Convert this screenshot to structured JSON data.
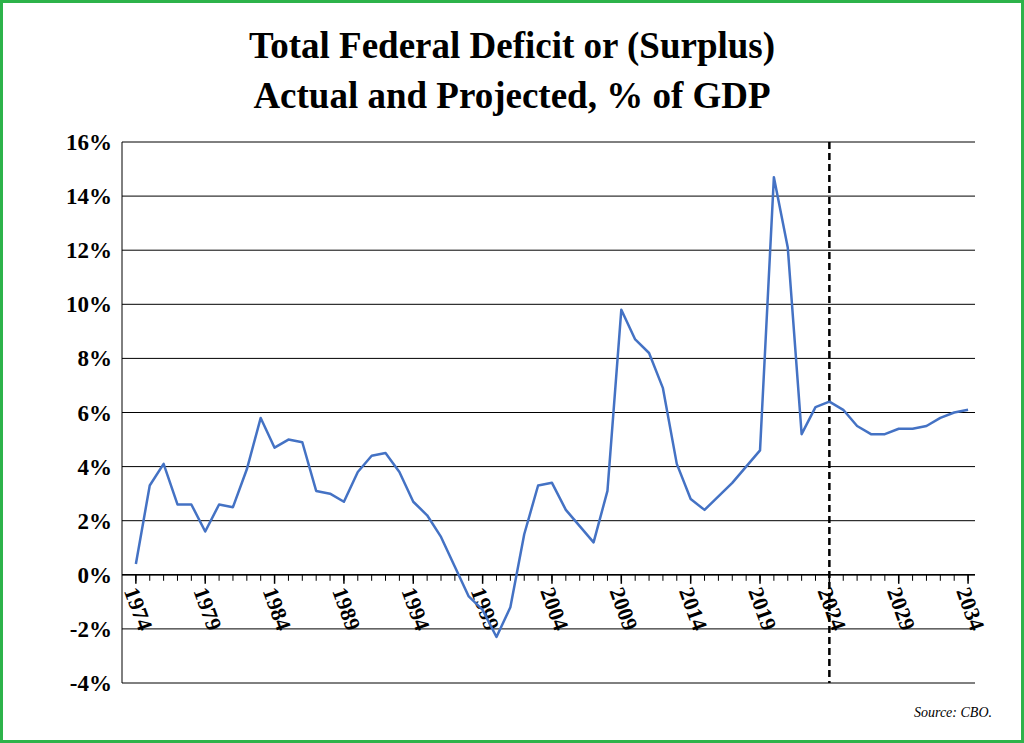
{
  "chart_data": {
    "type": "line",
    "title": "Total Federal Deficit or (Surplus)",
    "subtitle": "Actual and Projected, % of GDP",
    "source": "Source: CBO.",
    "x": [
      1974,
      1975,
      1976,
      1977,
      1978,
      1979,
      1980,
      1981,
      1982,
      1983,
      1984,
      1985,
      1986,
      1987,
      1988,
      1989,
      1990,
      1991,
      1992,
      1993,
      1994,
      1995,
      1996,
      1997,
      1998,
      1999,
      2000,
      2001,
      2002,
      2003,
      2004,
      2005,
      2006,
      2007,
      2008,
      2009,
      2010,
      2011,
      2012,
      2013,
      2014,
      2015,
      2016,
      2017,
      2018,
      2019,
      2020,
      2021,
      2022,
      2023,
      2024,
      2025,
      2026,
      2027,
      2028,
      2029,
      2030,
      2031,
      2032,
      2033,
      2034
    ],
    "values": [
      0.4,
      3.3,
      4.1,
      2.6,
      2.6,
      1.6,
      2.6,
      2.5,
      3.9,
      5.8,
      4.7,
      5.0,
      4.9,
      3.1,
      3.0,
      2.7,
      3.8,
      4.4,
      4.5,
      3.8,
      2.7,
      2.2,
      1.4,
      0.3,
      -0.8,
      -1.3,
      -2.3,
      -1.2,
      1.5,
      3.3,
      3.4,
      2.4,
      1.8,
      1.2,
      3.1,
      9.8,
      8.7,
      8.2,
      6.9,
      4.1,
      2.8,
      2.4,
      2.9,
      3.4,
      4.0,
      4.6,
      14.7,
      12.1,
      5.2,
      6.2,
      6.4,
      6.1,
      5.5,
      5.2,
      5.2,
      5.4,
      5.4,
      5.5,
      5.8,
      6.0,
      6.1
    ],
    "color": "#4472c4",
    "xlim": [
      1973,
      2034.5
    ],
    "xticks": [
      1974,
      1979,
      1984,
      1989,
      1994,
      1999,
      2004,
      2009,
      2014,
      2019,
      2024,
      2029,
      2034
    ],
    "ylim": [
      -4,
      16
    ],
    "yticks": [
      {
        "value": -4,
        "label": "-4%"
      },
      {
        "value": -2,
        "label": "-2%"
      },
      {
        "value": 0,
        "label": "0%"
      },
      {
        "value": 2,
        "label": "2%"
      },
      {
        "value": 4,
        "label": "4%"
      },
      {
        "value": 6,
        "label": "6%"
      },
      {
        "value": 8,
        "label": "8%"
      },
      {
        "value": 10,
        "label": "10%"
      },
      {
        "value": 12,
        "label": "12%"
      },
      {
        "value": 14,
        "label": "14%"
      },
      {
        "value": 16,
        "label": "16%"
      }
    ],
    "grid": true,
    "projection_start": 2024
  }
}
